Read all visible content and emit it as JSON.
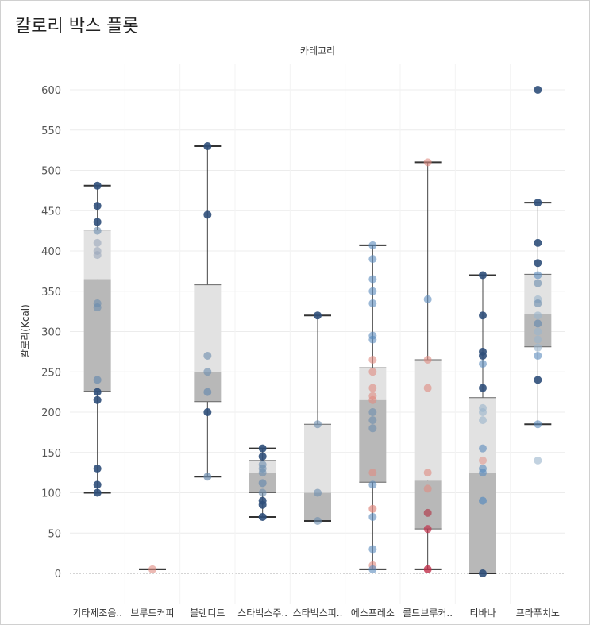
{
  "page": {
    "title": "칼로리 박스 플롯"
  },
  "chart_data": {
    "type": "box",
    "title": "칼로리 박스 플롯",
    "column_header": "카테고리",
    "ylabel": "칼로리(Kcal)",
    "ylim": [
      -35,
      635
    ],
    "yticks": [
      0,
      50,
      100,
      150,
      200,
      250,
      300,
      350,
      400,
      450,
      500,
      550,
      600
    ],
    "grid": true,
    "categories": [
      "기타제조음..",
      "브루드커피",
      "블렌디드",
      "스타벅스주..",
      "스타벅스피..",
      "에스프레소",
      "콜드브루커..",
      "티바나",
      "프라푸치노"
    ],
    "boxes": [
      {
        "whisker_low": 100,
        "q1": 226,
        "median": 365,
        "q3": 426,
        "whisker_high": 481
      },
      {
        "whisker_low": 5,
        "q1": 5,
        "median": 5,
        "q3": 5,
        "whisker_high": 5
      },
      {
        "whisker_low": 120,
        "q1": 213,
        "median": 250,
        "q3": 358,
        "whisker_high": 530
      },
      {
        "whisker_low": 70,
        "q1": 100,
        "median": 125,
        "q3": 140,
        "whisker_high": 155
      },
      {
        "whisker_low": 65,
        "q1": 65,
        "median": 100,
        "q3": 185,
        "whisker_high": 320
      },
      {
        "whisker_low": 5,
        "q1": 113,
        "median": 215,
        "q3": 255,
        "whisker_high": 407
      },
      {
        "whisker_low": 5,
        "q1": 55,
        "median": 115,
        "q3": 265,
        "whisker_high": 510
      },
      {
        "whisker_low": 0,
        "q1": 0,
        "median": 125,
        "q3": 218,
        "whisker_high": 370
      },
      {
        "whisker_low": 185,
        "q1": 281,
        "median": 322,
        "q3": 371,
        "whisker_high": 460
      }
    ],
    "points": [
      [
        [
          481,
          "#2f4f7a",
          0.9
        ],
        [
          456,
          "#2f4f7a",
          0.9
        ],
        [
          436,
          "#2f4f7a",
          0.9
        ],
        [
          425,
          "#6b8cae",
          0.6
        ],
        [
          410,
          "#9aa7bb",
          0.6
        ],
        [
          400,
          "#9aa7bb",
          0.6
        ],
        [
          395,
          "#9aa7bb",
          0.6
        ],
        [
          335,
          "#6b8cae",
          0.6
        ],
        [
          330,
          "#6b8cae",
          0.6
        ],
        [
          240,
          "#6b8cae",
          0.7
        ],
        [
          225,
          "#2f4f7a",
          0.9
        ],
        [
          215,
          "#2f4f7a",
          0.9
        ],
        [
          130,
          "#2f4f7a",
          0.9
        ],
        [
          110,
          "#2f4f7a",
          0.9
        ],
        [
          100,
          "#2f4f7a",
          0.9
        ]
      ],
      [
        [
          5,
          "#e08a80",
          0.6
        ]
      ],
      [
        [
          530,
          "#2f4f7a",
          0.9
        ],
        [
          445,
          "#2f4f7a",
          0.9
        ],
        [
          270,
          "#6b8cae",
          0.6
        ],
        [
          250,
          "#6b8cae",
          0.6
        ],
        [
          225,
          "#6b8cae",
          0.7
        ],
        [
          200,
          "#2f4f7a",
          0.9
        ],
        [
          120,
          "#6b8cae",
          0.7
        ]
      ],
      [
        [
          155,
          "#2f4f7a",
          0.9
        ],
        [
          145,
          "#2f4f7a",
          0.9
        ],
        [
          135,
          "#6b8cae",
          0.6
        ],
        [
          130,
          "#6b8cae",
          0.6
        ],
        [
          125,
          "#6b8cae",
          0.6
        ],
        [
          112,
          "#6b8cae",
          0.7
        ],
        [
          100,
          "#6b8cae",
          0.6
        ],
        [
          90,
          "#2f4f7a",
          0.9
        ],
        [
          85,
          "#2f4f7a",
          0.9
        ],
        [
          70,
          "#2f4f7a",
          0.9
        ]
      ],
      [
        [
          320,
          "#2f4f7a",
          0.9
        ],
        [
          185,
          "#6b8cae",
          0.6
        ],
        [
          100,
          "#6b8cae",
          0.6
        ],
        [
          65,
          "#6b8cae",
          0.6
        ]
      ],
      [
        [
          407,
          "#5a8bbd",
          0.6
        ],
        [
          390,
          "#5a8bbd",
          0.6
        ],
        [
          365,
          "#5a8bbd",
          0.6
        ],
        [
          350,
          "#5a8bbd",
          0.6
        ],
        [
          335,
          "#5a8bbd",
          0.6
        ],
        [
          295,
          "#5a8bbd",
          0.6
        ],
        [
          290,
          "#5a8bbd",
          0.6
        ],
        [
          265,
          "#e08a80",
          0.6
        ],
        [
          250,
          "#e08a80",
          0.6
        ],
        [
          230,
          "#e08a80",
          0.6
        ],
        [
          220,
          "#e08a80",
          0.6
        ],
        [
          215,
          "#e08a80",
          0.6
        ],
        [
          200,
          "#6b8cae",
          0.6
        ],
        [
          190,
          "#6b8cae",
          0.6
        ],
        [
          180,
          "#6b8cae",
          0.6
        ],
        [
          125,
          "#e08a80",
          0.6
        ],
        [
          110,
          "#5a8bbd",
          0.6
        ],
        [
          80,
          "#e08a80",
          0.7
        ],
        [
          70,
          "#5a8bbd",
          0.6
        ],
        [
          30,
          "#5a8bbd",
          0.6
        ],
        [
          10,
          "#e08a80",
          0.6
        ],
        [
          5,
          "#5a8bbd",
          0.6
        ]
      ],
      [
        [
          510,
          "#e08a80",
          0.6
        ],
        [
          340,
          "#5a8bbd",
          0.6
        ],
        [
          265,
          "#e08a80",
          0.6
        ],
        [
          230,
          "#e08a80",
          0.6
        ],
        [
          125,
          "#e08a80",
          0.6
        ],
        [
          105,
          "#e08a80",
          0.6
        ],
        [
          75,
          "#b04050",
          0.7
        ],
        [
          55,
          "#c0304a",
          0.7
        ],
        [
          5,
          "#c0304a",
          0.8
        ]
      ],
      [
        [
          370,
          "#2f4f7a",
          0.9
        ],
        [
          320,
          "#2f4f7a",
          0.9
        ],
        [
          275,
          "#2f4f7a",
          0.9
        ],
        [
          270,
          "#2f4f7a",
          0.9
        ],
        [
          260,
          "#5a8bbd",
          0.6
        ],
        [
          230,
          "#2f4f7a",
          0.9
        ],
        [
          205,
          "#9ab4cc",
          0.6
        ],
        [
          200,
          "#9ab4cc",
          0.6
        ],
        [
          190,
          "#9ab4cc",
          0.6
        ],
        [
          155,
          "#5a8bbd",
          0.6
        ],
        [
          140,
          "#e08a80",
          0.5
        ],
        [
          130,
          "#5a8bbd",
          0.6
        ],
        [
          125,
          "#5a8bbd",
          0.6
        ],
        [
          90,
          "#5a8bbd",
          0.7
        ],
        [
          0,
          "#2f4f7a",
          0.9
        ]
      ],
      [
        [
          600,
          "#2f4f7a",
          0.9
        ],
        [
          460,
          "#2f4f7a",
          0.9
        ],
        [
          410,
          "#2f4f7a",
          0.9
        ],
        [
          385,
          "#2f4f7a",
          0.9
        ],
        [
          370,
          "#5a8bbd",
          0.6
        ],
        [
          360,
          "#6b8cae",
          0.6
        ],
        [
          340,
          "#9ab4cc",
          0.6
        ],
        [
          335,
          "#6b8cae",
          0.6
        ],
        [
          320,
          "#9ab4cc",
          0.6
        ],
        [
          310,
          "#6b8cae",
          0.7
        ],
        [
          300,
          "#9ab4cc",
          0.6
        ],
        [
          290,
          "#9ab4cc",
          0.6
        ],
        [
          280,
          "#9ab4cc",
          0.6
        ],
        [
          270,
          "#5a8bbd",
          0.6
        ],
        [
          240,
          "#2f4f7a",
          0.9
        ],
        [
          185,
          "#5a8bbd",
          0.6
        ],
        [
          140,
          "#9ab4cc",
          0.6
        ]
      ]
    ],
    "colors": {
      "box_lower": "#b8b8b8",
      "box_upper": "#e2e2e2",
      "whisker": "#444444",
      "grid": "#ececec",
      "zero_line": "#aaaaaa"
    }
  }
}
